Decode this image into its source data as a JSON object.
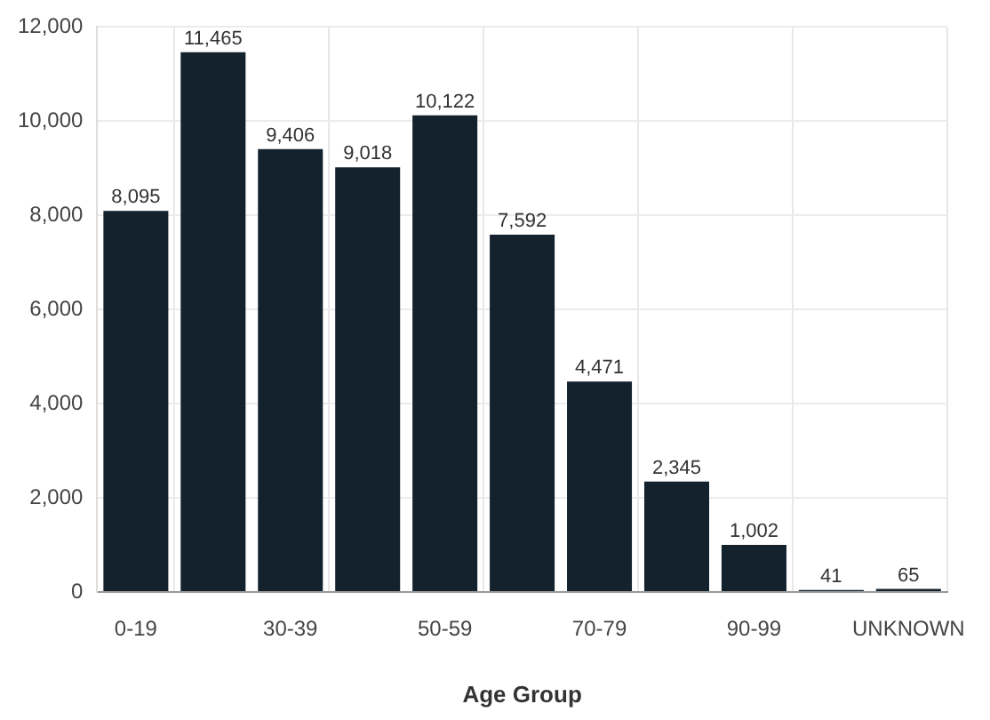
{
  "chart_data": {
    "type": "bar",
    "xlabel": "Age Group",
    "categories": [
      "0-19",
      null,
      "30-39",
      null,
      "50-59",
      null,
      "70-79",
      null,
      "90-99",
      null,
      "UNKNOWN"
    ],
    "values": [
      8095,
      11465,
      9406,
      9018,
      10122,
      7592,
      4471,
      2345,
      1002,
      41,
      65
    ],
    "color": "#14222e",
    "ylim": [
      0,
      12000
    ],
    "yticks": [
      {
        "value": 0,
        "label": "0"
      },
      {
        "value": 2000,
        "label": "2,000"
      },
      {
        "value": 4000,
        "label": "4,000"
      },
      {
        "value": 6000,
        "label": "6,000"
      },
      {
        "value": 8000,
        "label": "8,000"
      },
      {
        "value": 10000,
        "label": "10,000"
      },
      {
        "value": 12000,
        "label": "12,000"
      }
    ],
    "value_labels": [
      "8,095",
      "11,465",
      "9,406",
      "9,018",
      "10,122",
      "7,592",
      "4,471",
      "2,345",
      "1,002",
      "41",
      "65"
    ],
    "grid": true
  }
}
